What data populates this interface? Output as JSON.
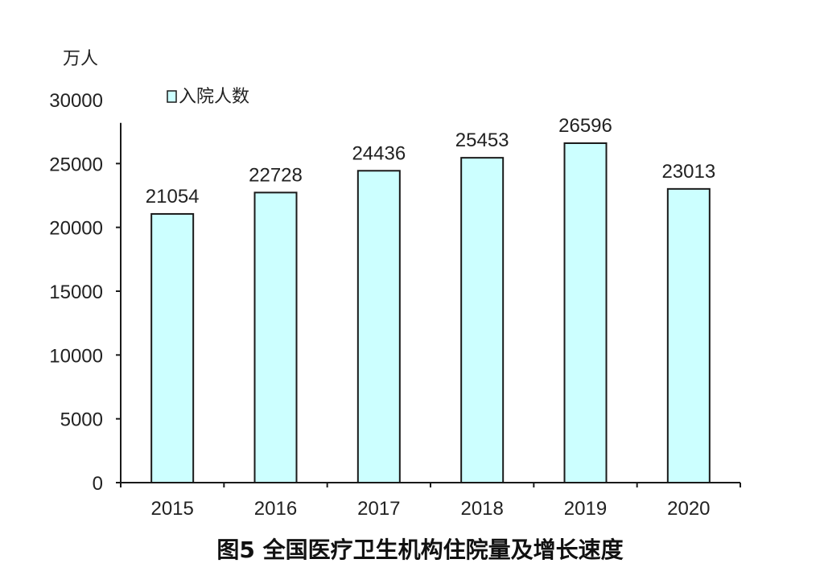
{
  "chart_data": {
    "type": "bar",
    "title": "图5 全国医疗卫生机构住院量及增长速度",
    "ylabel": "万人",
    "xlabel": "",
    "categories": [
      "2015",
      "2016",
      "2017",
      "2018",
      "2019",
      "2020"
    ],
    "series": [
      {
        "name": "入院人数",
        "values": [
          21054,
          22728,
          24436,
          25453,
          26596,
          23013
        ]
      }
    ],
    "ylim": [
      0,
      30000
    ],
    "yticks": [
      "0",
      "5000",
      "10000",
      "15000",
      "20000",
      "25000",
      "30000"
    ],
    "grid": false,
    "legend_position": "top-left",
    "colors": {
      "bar_fill": "#ccffff",
      "bar_stroke": "#1a1a1a",
      "axis": "#1a1a1a"
    }
  }
}
